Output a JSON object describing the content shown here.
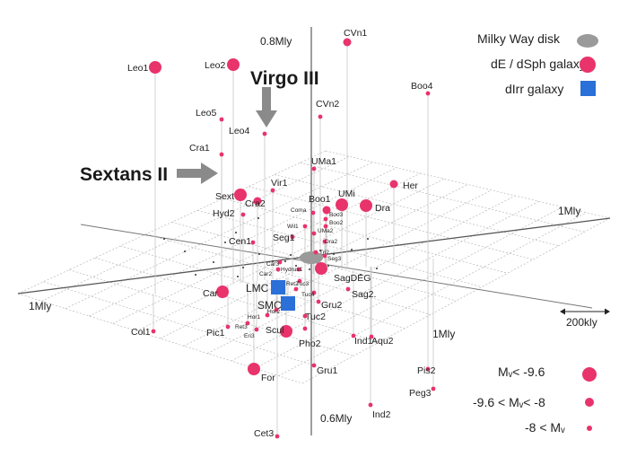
{
  "axes": {
    "vertical_top": "0.8Mly",
    "vertical_bottom": "0.6Mly",
    "right": "1Mly",
    "left": "1Mly",
    "front": "1Mly"
  },
  "scale_bar": "200kly",
  "legend": {
    "types": [
      {
        "label": "Milky Way disk",
        "symbol": "ellipse",
        "color": "#9a9a9a"
      },
      {
        "label": "dE / dSph galaxy",
        "symbol": "circle",
        "color": "#e8336b"
      },
      {
        "label": "dIrr galaxy",
        "symbol": "square",
        "color": "#2b6fd8"
      }
    ],
    "sizes": [
      {
        "label": "Mᵥ< -9.6"
      },
      {
        "label": "-9.6 < Mᵥ< -8"
      },
      {
        "label": "-8 < Mᵥ"
      }
    ]
  },
  "callouts": [
    {
      "text": "Virgo III"
    },
    {
      "text": "Sextans II"
    }
  ],
  "colors": {
    "dsph": "#e8336b",
    "dirr": "#2b6fd8",
    "disk": "#9a9a9a",
    "grid": "#b8b8b8",
    "arrow": "#8a8a8a"
  },
  "galaxies": [
    {
      "name": "CVn1",
      "size": "m"
    },
    {
      "name": "Leo1",
      "size": "l"
    },
    {
      "name": "Leo2",
      "size": "l"
    },
    {
      "name": "Boo4",
      "size": "s"
    },
    {
      "name": "CVn2",
      "size": "s"
    },
    {
      "name": "Leo5",
      "size": "s"
    },
    {
      "name": "Leo4",
      "size": "s"
    },
    {
      "name": "Cra1",
      "size": "s"
    },
    {
      "name": "UMa1",
      "size": "s"
    },
    {
      "name": "Her",
      "size": "m"
    },
    {
      "name": "Vir1",
      "size": "s"
    },
    {
      "name": "Sext",
      "size": "l"
    },
    {
      "name": "Cra2",
      "size": "m"
    },
    {
      "name": "UMi",
      "size": "l"
    },
    {
      "name": "Boo1",
      "size": "m"
    },
    {
      "name": "Dra",
      "size": "l"
    },
    {
      "name": "Hyd2",
      "size": "s"
    },
    {
      "name": "Coma",
      "size": "s"
    },
    {
      "name": "Boo3",
      "size": "s"
    },
    {
      "name": "Wil1",
      "size": "s"
    },
    {
      "name": "Boo2",
      "size": "s"
    },
    {
      "name": "UMa2",
      "size": "s"
    },
    {
      "name": "Dra2",
      "size": "s"
    },
    {
      "name": "Seg1",
      "size": "s"
    },
    {
      "name": "Cen1",
      "size": "s"
    },
    {
      "name": "Seg3",
      "size": "s"
    },
    {
      "name": "Tri2",
      "size": "s"
    },
    {
      "name": "Car3",
      "size": "s"
    },
    {
      "name": "Car2",
      "size": "s"
    },
    {
      "name": "Hydrus1",
      "size": "s"
    },
    {
      "name": "SagDEG",
      "size": "l"
    },
    {
      "name": "Ret2",
      "size": "s"
    },
    {
      "name": "Tuc4",
      "size": "s"
    },
    {
      "name": "Tuc3",
      "size": "s"
    },
    {
      "name": "Car",
      "size": "l"
    },
    {
      "name": "LMC",
      "size": "l",
      "type": "dirr"
    },
    {
      "name": "SMC",
      "size": "l",
      "type": "dirr"
    },
    {
      "name": "Sag2.",
      "size": "s"
    },
    {
      "name": "Gru2",
      "size": "s"
    },
    {
      "name": "Hor2",
      "size": "s"
    },
    {
      "name": "Tuc2",
      "size": "s"
    },
    {
      "name": "Hor1",
      "size": "s"
    },
    {
      "name": "Ret3",
      "size": "s"
    },
    {
      "name": "Col1",
      "size": "s"
    },
    {
      "name": "Pic1",
      "size": "s"
    },
    {
      "name": "Eri3",
      "size": "s"
    },
    {
      "name": "Scul",
      "size": "l"
    },
    {
      "name": "Pho2",
      "size": "s"
    },
    {
      "name": "Ind1",
      "size": "s"
    },
    {
      "name": "Aqu2",
      "size": "s"
    },
    {
      "name": "Gru1",
      "size": "s"
    },
    {
      "name": "For",
      "size": "l"
    },
    {
      "name": "Pis2",
      "size": "s"
    },
    {
      "name": "Peg3",
      "size": "s"
    },
    {
      "name": "Ind2",
      "size": "s"
    },
    {
      "name": "Cet3",
      "size": "s"
    }
  ]
}
